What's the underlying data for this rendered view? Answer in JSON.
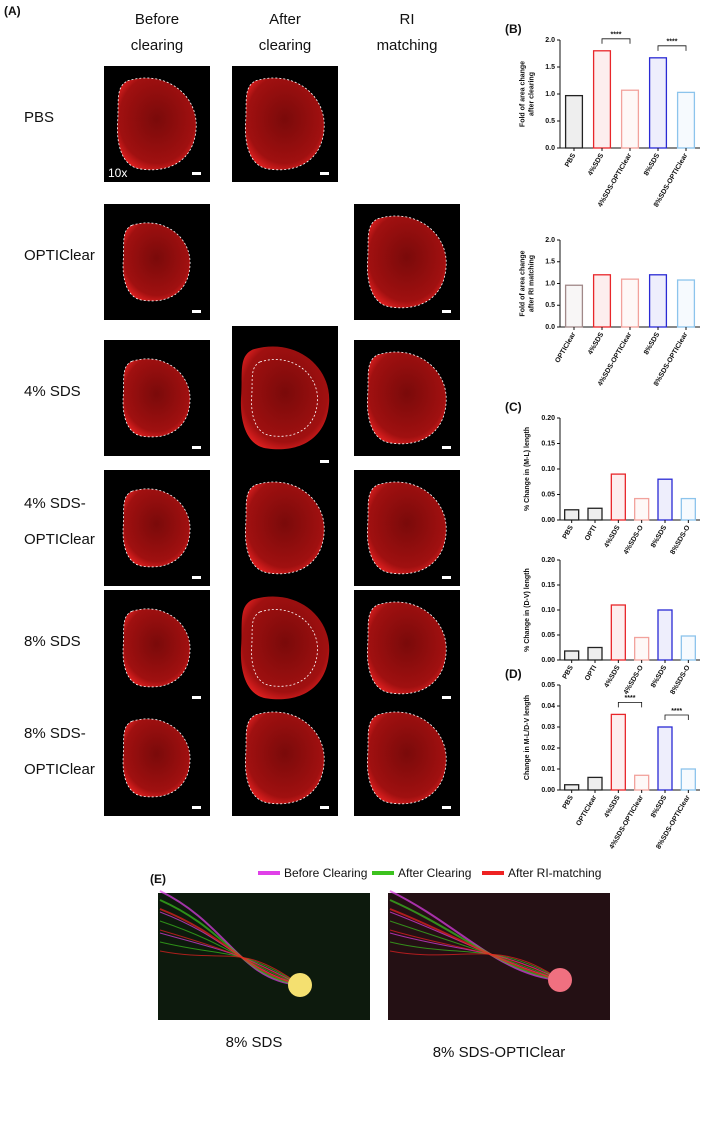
{
  "panel_a": {
    "label": "(A)",
    "columns": [
      [
        "Before",
        "clearing"
      ],
      [
        "After",
        "clearing"
      ],
      [
        "RI",
        "matching"
      ]
    ],
    "rows": [
      [
        "PBS"
      ],
      [
        "OPTIClear"
      ],
      [
        "4% SDS"
      ],
      [
        "4% SDS-",
        "OPTIClear"
      ],
      [
        "8% SDS"
      ],
      [
        "8% SDS-",
        "OPTIClear"
      ]
    ],
    "magnification": "10x"
  },
  "chart_data": [
    {
      "type": "bar",
      "label": "(B)",
      "ylabel": [
        "Fold of area change",
        "after clearing"
      ],
      "categories": [
        "PBS",
        "4%SDS",
        "4%SDS-OPTIClear",
        "8%SDS",
        "8%SDS-OPTIClear"
      ],
      "values": [
        0.97,
        1.8,
        1.07,
        1.67,
        1.03
      ],
      "colors": [
        "#222222",
        "#e8262a",
        "#f2a29c",
        "#2a2ad4",
        "#8cc4ec"
      ],
      "ylim": [
        0,
        2
      ],
      "yticks": [
        {
          "value": 0,
          "label": "0.0"
        },
        0.5,
        {
          "value": 1,
          "label": "1.0"
        },
        1.5,
        {
          "value": 2,
          "label": "2.0"
        }
      ],
      "annotations": [
        {
          "text": "****",
          "from": 1,
          "to": 2
        },
        {
          "text": "****",
          "from": 3,
          "to": 4
        }
      ]
    },
    {
      "type": "bar",
      "ylabel": [
        "Fold of area change",
        "after RI matching"
      ],
      "categories": [
        "OPTIClear",
        "4%SDS",
        "4%SDS-OPTIClear",
        "8%SDS",
        "8%SDS-OPTIClear"
      ],
      "values": [
        0.96,
        1.2,
        1.1,
        1.2,
        1.08
      ],
      "colors": [
        "#a08888",
        "#e8262a",
        "#f2a29c",
        "#2a2ad4",
        "#8cc4ec"
      ],
      "ylim": [
        0,
        2
      ],
      "yticks": [
        {
          "value": 0,
          "label": "0.0"
        },
        0.5,
        {
          "value": 1,
          "label": "1.0"
        },
        1.5,
        {
          "value": 2,
          "label": "2.0"
        }
      ]
    },
    {
      "type": "bar",
      "label": "(C)",
      "ylabel": [
        "% Change in (M-L) length"
      ],
      "categories": [
        "PBS",
        "OPTI",
        "4%SDS",
        "4%SDS-O",
        "8%SDS",
        "8%SDS-O"
      ],
      "values": [
        0.02,
        0.023,
        0.09,
        0.042,
        0.08,
        0.042
      ],
      "colors": [
        "#222222",
        "#222222",
        "#e8262a",
        "#f2a29c",
        "#2a2ad4",
        "#8cc4ec"
      ],
      "ylim": [
        0,
        0.2
      ],
      "yticks": [
        {
          "value": 0,
          "label": "0.00"
        },
        0.05,
        {
          "value": 0.1,
          "label": "0.10"
        },
        0.15,
        {
          "value": 0.2,
          "label": "0.20"
        }
      ]
    },
    {
      "type": "bar",
      "ylabel": [
        "% Change in (D-V) length"
      ],
      "categories": [
        "PBS",
        "OPTI",
        "4%SDS",
        "4%SDS-O",
        "8%SDS",
        "8%SDS-O"
      ],
      "values": [
        0.018,
        0.025,
        0.11,
        0.045,
        0.1,
        0.048
      ],
      "colors": [
        "#222222",
        "#222222",
        "#e8262a",
        "#f2a29c",
        "#2a2ad4",
        "#8cc4ec"
      ],
      "ylim": [
        0,
        0.2
      ],
      "yticks": [
        {
          "value": 0,
          "label": "0.00"
        },
        0.05,
        {
          "value": 0.1,
          "label": "0.10"
        },
        0.15,
        {
          "value": 0.2,
          "label": "0.20"
        }
      ]
    },
    {
      "type": "bar",
      "label": "(D)",
      "ylabel": [
        "Change in M-L/D-V length"
      ],
      "categories": [
        "PBS",
        "OPTIClear",
        "4%SDS",
        "4%SDS-OPTIClear",
        "8%SDS",
        "8%SDS-OPTIClear"
      ],
      "values": [
        0.0025,
        0.006,
        0.036,
        0.007,
        0.03,
        0.01
      ],
      "colors": [
        "#222222",
        "#222222",
        "#e8262a",
        "#f2a29c",
        "#2a2ad4",
        "#8cc4ec"
      ],
      "ylim": [
        0,
        0.05
      ],
      "yticks": [
        {
          "value": 0,
          "label": "0.00"
        },
        0.01,
        0.02,
        0.03,
        0.04,
        0.05
      ],
      "annotations": [
        {
          "text": "****",
          "from": 2,
          "to": 3
        },
        {
          "text": "****",
          "from": 4,
          "to": 5
        }
      ]
    }
  ],
  "panel_e": {
    "label": "(E)",
    "legend": [
      {
        "name": "Before Clearing",
        "color": "#e040e8"
      },
      {
        "name": "After Clearing",
        "color": "#3cc21e"
      },
      {
        "name": "After RI-matching",
        "color": "#ee2222"
      }
    ],
    "captions": [
      "8% SDS",
      "8% SDS-OPTIClear"
    ]
  }
}
